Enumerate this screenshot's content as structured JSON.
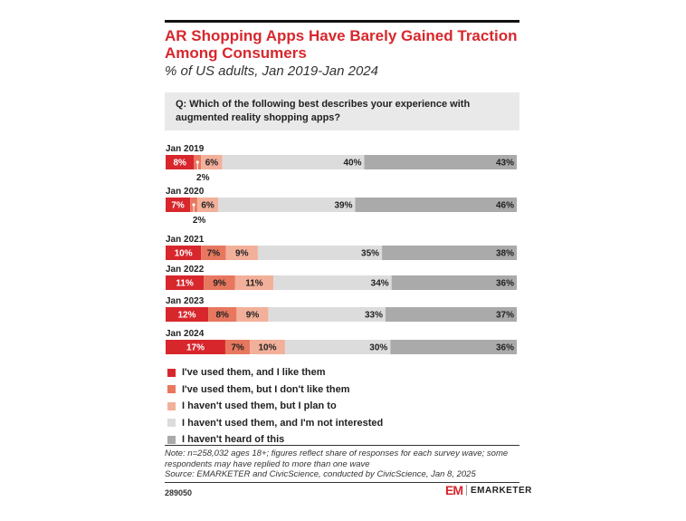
{
  "title": "AR Shopping Apps Have Barely Gained Traction Among Consumers",
  "subtitle": "% of US adults, Jan 2019-Jan 2024",
  "question": "Q: Which of the following best describes your experience with augmented reality shopping apps?",
  "note": "Note: n=258,032 ages 18+; figures reflect share of responses for each survey wave; some respondents may have replied to more than one wave",
  "source": "Source: EMARKETER and CivicScience, conducted by CivicScience, Jan 8, 2025",
  "chart_id": "289050",
  "logo": {
    "mark": "EM",
    "text": "EMARKETER"
  },
  "chart_data": {
    "type": "bar",
    "orientation": "horizontal",
    "stacked": true,
    "categories": [
      "Jan 2019",
      "Jan 2020",
      "Jan 2021",
      "Jan 2022",
      "Jan 2023",
      "Jan 2024"
    ],
    "series": [
      {
        "name": "I've used them, and I like them",
        "color": "#d7272d",
        "values": [
          8,
          7,
          10,
          11,
          12,
          17
        ]
      },
      {
        "name": "I've used them, but I don't like them",
        "color": "#e8775f",
        "values": [
          2,
          2,
          7,
          9,
          8,
          7
        ]
      },
      {
        "name": "I haven't used them, but I plan to",
        "color": "#f2b09a",
        "values": [
          6,
          6,
          9,
          11,
          9,
          10
        ]
      },
      {
        "name": "I haven't used them, and I'm not interested",
        "color": "#dcdcdc",
        "values": [
          40,
          39,
          35,
          34,
          33,
          30
        ]
      },
      {
        "name": "I haven't heard of this",
        "color": "#aaaaaa",
        "values": [
          43,
          46,
          38,
          36,
          37,
          36
        ]
      }
    ],
    "value_suffix": "%",
    "legend_position": "bottom"
  }
}
